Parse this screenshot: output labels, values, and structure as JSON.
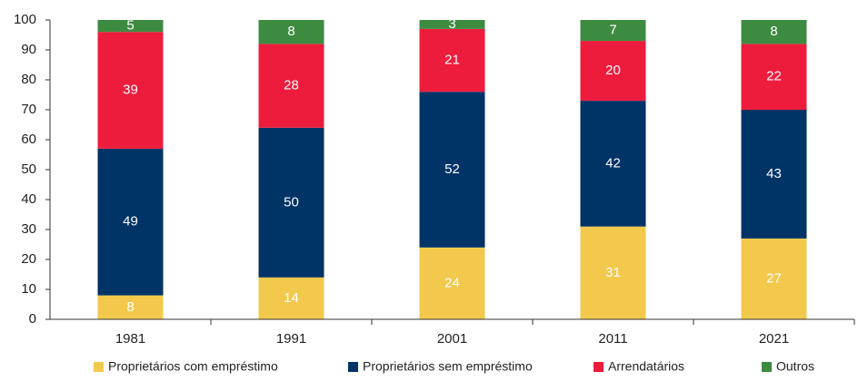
{
  "chart_data": {
    "type": "stacked_bar",
    "categories": [
      "1981",
      "1991",
      "2001",
      "2011",
      "2021"
    ],
    "series": [
      {
        "name": "Proprietários com empréstimo",
        "color": "#f2c94c",
        "values": [
          8,
          14,
          24,
          31,
          27
        ]
      },
      {
        "name": "Proprietários sem empréstimo",
        "color": "#003366",
        "values": [
          49,
          50,
          52,
          42,
          43
        ]
      },
      {
        "name": "Arrendatários",
        "color": "#ed1c3c",
        "values": [
          39,
          28,
          21,
          20,
          22
        ]
      },
      {
        "name": "Outros",
        "color": "#3d8b40",
        "values": [
          5,
          8,
          3,
          7,
          8
        ]
      }
    ],
    "ylim": [
      0,
      100
    ],
    "yticks": [
      0,
      10,
      20,
      30,
      40,
      50,
      60,
      70,
      80,
      90,
      100
    ],
    "grid": false
  }
}
